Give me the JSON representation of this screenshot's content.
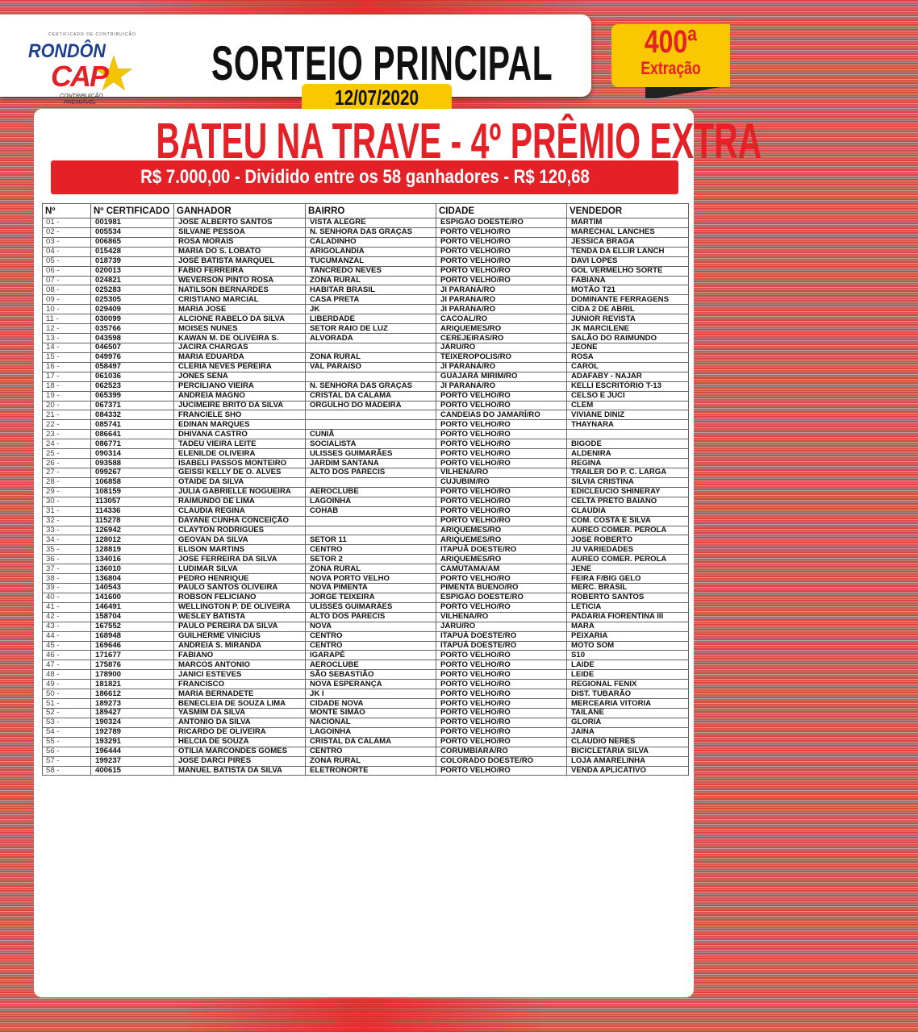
{
  "logo": {
    "tagline": "CERTIFICADO DE CONTRIBUIÇÃO",
    "brand_top": "RONDÔN",
    "brand_bottom": "CAP",
    "subtitle": "CONTRIBUIÇÃO PREMIÁVEL"
  },
  "header": {
    "title": "SORTEIO PRINCIPAL",
    "date": "12/07/2020",
    "extraction_number": "400ª",
    "extraction_label": "Extração"
  },
  "prize": {
    "title": "BATEU NA TRAVE - 4º PRÊMIO EXTRA",
    "summary": "R$ 7.000,00 - Dividido entre os 58 ganhadores - R$ 120,68"
  },
  "colors": {
    "red": "#e32127",
    "yellow": "#f9c800",
    "blue": "#1d3f8f"
  },
  "table": {
    "columns": [
      "Nº",
      "Nº CERTIFICADO",
      "GANHADOR",
      "BAIRRO",
      "CIDADE",
      "VENDEDOR"
    ],
    "rows": [
      [
        "01 -",
        "001981",
        "JOSE ALBERTO SANTOS",
        "VISTA ALEGRE",
        "ESPIGÃO DOESTE/RO",
        "MARTIM"
      ],
      [
        "02 -",
        "005534",
        "SILVANE PESSOA",
        "N. SENHORA DAS GRAÇAS",
        "PORTO VELHO/RO",
        "MARECHAL LANCHES"
      ],
      [
        "03 -",
        "006865",
        "ROSA MORAIS",
        "CALADINHO",
        "PORTO VELHO/RO",
        "JESSICA BRAGA"
      ],
      [
        "04 -",
        "015428",
        "MARIA DO S. LOBATO",
        "ARIGOLANDIA",
        "PORTO VELHO/RO",
        "TENDA DA ELLIR LANCH"
      ],
      [
        "05 -",
        "018739",
        "JOSÉ BATISTA MARQUEL",
        "TUCUMANZAL",
        "PORTO VELHO/RO",
        "DAVI LOPES"
      ],
      [
        "06 -",
        "020013",
        "FABIO FERREIRA",
        "TANCREDO NEVES",
        "PORTO VELHO/RO",
        "GOL VERMELHO SORTE"
      ],
      [
        "07 -",
        "024821",
        "WEVERSON PINTO ROSA",
        "ZONA RURAL",
        "PORTO VELHO/RO",
        "FABIANA"
      ],
      [
        "08 -",
        "025283",
        "NATILSON BERNARDES",
        "HABITAR BRASIL",
        "JI PARANÁ/RO",
        "MOTÃO T21"
      ],
      [
        "09 -",
        "025305",
        "CRISTIANO MARCIAL",
        "CASA PRETA",
        "JI PARANA/RO",
        "DOMINANTE FERRAGENS"
      ],
      [
        "10 -",
        "029409",
        "MARIA JOSE",
        "JK",
        "JI PARANA/RO",
        "CIDA 2 DE ABRIL"
      ],
      [
        "11 -",
        "030099",
        "ALCIONE RABELO DA SILVA",
        "LIBERDADE",
        "CACOAL/RO",
        "JUNIOR REVISTA"
      ],
      [
        "12 -",
        "035766",
        "MOISES NUNES",
        "SETOR RAIO DE LUZ",
        "ARIQUEMES/RO",
        "JK MARCILENE"
      ],
      [
        "13 -",
        "043598",
        "KAWAN M. DE OLIVEIRA S.",
        "ALVORADA",
        "CEREJEIRAS/RO",
        "SALÃO DO RAIMUNDO"
      ],
      [
        "14 -",
        "046507",
        "JACIRA CHARGAS",
        "",
        "JARU/RO",
        "JEONE"
      ],
      [
        "15 -",
        "049976",
        "MARIA EDUARDA",
        "ZONA RURAL",
        "TEIXEROPOLIS/RO",
        "ROSA"
      ],
      [
        "16 -",
        "058497",
        "CLERIA NEVES PEREIRA",
        "VAL PARAISO",
        "JI PARANÁ/RO",
        "CAROL"
      ],
      [
        "17 -",
        "061036",
        "JONES SENA",
        "",
        "GUAJARÁ MIRIM/RO",
        "ADAFABY - NAJAR"
      ],
      [
        "18 -",
        "062523",
        "PERCILIANO VIEIRA",
        "N. SENHORA DAS GRAÇAS",
        "JI PARANÁ/RO",
        "KELLI ESCRITÓRIO T-13"
      ],
      [
        "19 -",
        "065399",
        "ANDREIA MAGNO",
        "CRISTAL DA CALAMA",
        "PORTO VELHO/RO",
        "CELSO E JUCI"
      ],
      [
        "20 -",
        "067371",
        "JUCIMEIRE BRITO DA SILVA",
        "ORGULHO DO MADEIRA",
        "PORTO VELHO/RO",
        "CLEM"
      ],
      [
        "21 -",
        "084332",
        "FRANCIELE SHO",
        "",
        "CANDEIAS DO JAMARÍ/RO",
        "VIVIANE DINIZ"
      ],
      [
        "22 -",
        "085741",
        "EDINAN MARQUES",
        "",
        "PORTO VELHO/RO",
        "THAYNARA"
      ],
      [
        "23 -",
        "086641",
        "DHIVANA CASTRO",
        "CUNIÃ",
        "PORTO VELHO/RO",
        ""
      ],
      [
        "24 -",
        "086771",
        "TADEU VIEIRA LEITE",
        "SOCIALISTA",
        "PORTO VELHO/RO",
        "BIGODE"
      ],
      [
        "25 -",
        "090314",
        "ELENILDE OLIVEIRA",
        "ULISSES GUIMARÃES",
        "PORTO VELHO/RO",
        "ALDENIRA"
      ],
      [
        "26 -",
        "093588",
        "ISABELI PASSOS MONTEIRO",
        "JARDIM SANTANA",
        "PORTO VELHO/RO",
        "REGINA"
      ],
      [
        "27 -",
        "099267",
        "GEISSI KELLY DE O. ALVES",
        "ALTO DOS PARECIS",
        "VILHENA/RO",
        "TRAILER DO P. C. LARGA"
      ],
      [
        "28 -",
        "106858",
        "OTAIDE DA SILVA",
        "",
        "CUJUBIM/RO",
        "SILVIA CRISTINA"
      ],
      [
        "29 -",
        "108159",
        "JULIA GABRIELLE NOGUEIRA",
        "AEROCLUBE",
        "PORTO VELHO/RO",
        "EDICLEUCIO SHINERAY"
      ],
      [
        "30 -",
        "113057",
        "RAIMUNDO DE LIMA",
        "LAGOINHA",
        "PORTO VELHO/RO",
        "CELTA PRETO BAIANO"
      ],
      [
        "31 -",
        "114336",
        "CLAUDIA REGINA",
        "COHAB",
        "PORTO VELHO/RO",
        "CLAUDIA"
      ],
      [
        "32 -",
        "115278",
        "DAYANE CUNHA CONCEIÇÃO",
        "",
        "PORTO VELHO/RO",
        "COM. COSTA E SILVA"
      ],
      [
        "33 -",
        "126942",
        "CLAYTON RODRIGUES",
        "",
        "ARIQUEMES/RO",
        "AUREO COMER. PEROLA"
      ],
      [
        "34 -",
        "128012",
        "GEOVAN DA SILVA",
        "SETOR 11",
        "ARIQUEMES/RO",
        "JOSE ROBERTO"
      ],
      [
        "35 -",
        "128819",
        "ELISON MARTINS",
        "CENTRO",
        "ITAPUÃ DOESTE/RO",
        "JU VARIEDADES"
      ],
      [
        "36 -",
        "134016",
        "JOSE FERREIRA DA SILVA",
        "SETOR 2",
        "ARIQUEMES/RO",
        "AUREO COMER. PEROLA"
      ],
      [
        "37 -",
        "136010",
        "LUDIMAR SILVA",
        "ZONA RURAL",
        "CAMUTAMA/AM",
        "JENE"
      ],
      [
        "38 -",
        "136804",
        "PEDRO HENRIQUE",
        "NOVA PORTO VELHO",
        "PORTO VELHO/RO",
        "FEIRA F/BIG GELO"
      ],
      [
        "39 -",
        "140543",
        "PAULO SANTOS OLIVEIRA",
        "NOVA PIMENTA",
        "PIMENTA BUENO/RO",
        "MERC. BRASIL"
      ],
      [
        "40 -",
        "141600",
        "ROBSON FELICIANO",
        "JORGE TEIXEIRA",
        "ESPIGÃO DOESTE/RO",
        "ROBERTO SANTOS"
      ],
      [
        "41 -",
        "146491",
        "WELLINGTON P. DE OLIVEIRA",
        "ULISSES GUIMARÃES",
        "PORTO VELHO/RO",
        "LETICIA"
      ],
      [
        "42 -",
        "158704",
        "WESLEY BATISTA",
        "ALTO DOS PARECIS",
        "VILHENA/RO",
        "PADARIA FIORENTINA III"
      ],
      [
        "43 -",
        "167552",
        "PAULO PEREIRA DA SILVA",
        "NOVA",
        "JARU/RO",
        "MARA"
      ],
      [
        "44 -",
        "168948",
        "GUILHERME VINICIUS",
        "CENTRO",
        "ITAPUÃ DOESTE/RO",
        "PEIXARIA"
      ],
      [
        "45 -",
        "169646",
        "ANDREIA S. MIRANDA",
        "CENTRO",
        "ITAPUÃ DOESTE/RO",
        "MOTO SOM"
      ],
      [
        "46 -",
        "171677",
        "FABIANO",
        "IGARAPÉ",
        "PORTO VELHO/RO",
        "S10"
      ],
      [
        "47 -",
        "175876",
        "MARCOS ANTONIO",
        "AEROCLUBE",
        "PORTO VELHO/RO",
        "LAIDE"
      ],
      [
        "48 -",
        "178900",
        "JANICI ESTEVES",
        "SÃO SEBASTIÃO",
        "PORTO VELHO/RO",
        "LEIDE"
      ],
      [
        "49 -",
        "181821",
        "FRANCISCO",
        "NOVA ESPERANÇA",
        "PORTO VELHO/RO",
        "REGIONAL FENIX"
      ],
      [
        "50 -",
        "186612",
        "MARIA BERNADETE",
        "JK I",
        "PORTO VELHO/RO",
        "DIST. TUBARÃO"
      ],
      [
        "51 -",
        "189273",
        "BENECLEIA DE SOUZA LIMA",
        "CIDADE NOVA",
        "PORTO VELHO/RO",
        "MERCEARIA VITORIA"
      ],
      [
        "52 -",
        "189427",
        "YASMIM DA SILVA",
        "MONTE SIMÃO",
        "PORTO VELHO/RO",
        "TAILANE"
      ],
      [
        "53 -",
        "190324",
        "ANTONIO DA SILVA",
        "NACIONAL",
        "PORTO VELHO/RO",
        "GLORIA"
      ],
      [
        "54 -",
        "192789",
        "RICARDO DE OLIVEIRA",
        "LAGOINHA",
        "PORTO VELHO/RO",
        "JAINA"
      ],
      [
        "55 -",
        "193291",
        "HELCIA DE SOUZA",
        "CRISTAL DA CALAMA",
        "PORTO VELHO/RO",
        "CLAUDIO NERES"
      ],
      [
        "56 -",
        "196444",
        "OTILIA MARCONDES GOMES",
        "CENTRO",
        "CORUMBIARA/RO",
        "BICICLETARIA SILVA"
      ],
      [
        "57 -",
        "199237",
        "JOSE DARCI PIRES",
        "ZONA RURAL",
        "COLORADO DOESTE/RO",
        "LOJA AMARELINHA"
      ],
      [
        "58 -",
        "400615",
        "MANUEL BATISTA DA SILVA",
        "ELETRONORTE",
        "PORTO VELHO/RO",
        "VENDA APLICATIVO"
      ]
    ]
  }
}
